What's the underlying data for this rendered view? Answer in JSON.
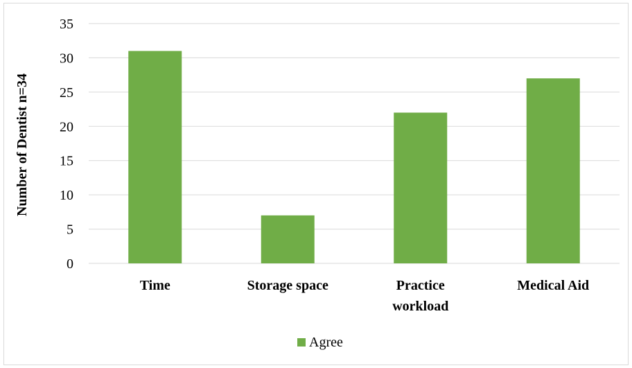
{
  "chart_data": {
    "type": "bar",
    "categories": [
      [
        "Time"
      ],
      [
        "Storage space"
      ],
      [
        "Practice",
        "workload"
      ],
      [
        "Medical Aid"
      ]
    ],
    "series": [
      {
        "name": "Agree",
        "color": "#70ad47",
        "values": [
          31,
          7,
          22,
          27
        ]
      }
    ],
    "ylabel": "Number of  Dentist n=34",
    "ylim": [
      0,
      35
    ],
    "yticks": [
      0,
      5,
      10,
      15,
      20,
      25,
      30,
      35
    ],
    "grid": true,
    "legend_position": "bottom"
  }
}
